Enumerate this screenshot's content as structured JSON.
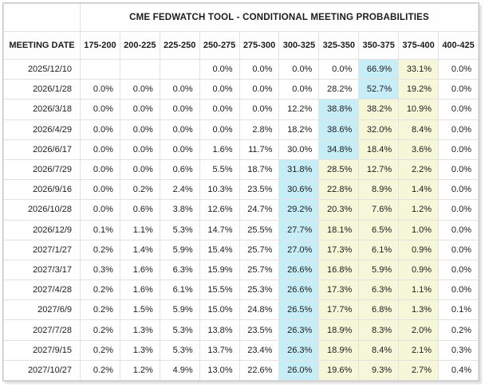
{
  "widget": {
    "title": "CME FEDWATCH TOOL - CONDITIONAL MEETING PROBABILITIES"
  },
  "table": {
    "date_column_header": "MEETING DATE",
    "rate_columns": [
      "175-200",
      "200-225",
      "225-250",
      "250-275",
      "275-300",
      "300-325",
      "325-350",
      "350-375",
      "375-400",
      "400-425"
    ],
    "rows": [
      {
        "date": "2025/12/10",
        "values": [
          "",
          "",
          "",
          "0.0%",
          "0.0%",
          "0.0%",
          "0.0%",
          "66.9%",
          "33.1%",
          "0.0%"
        ],
        "highlights": [
          "none",
          "none",
          "none",
          "none",
          "none",
          "none",
          "none",
          "blue",
          "yellow",
          "none"
        ]
      },
      {
        "date": "2026/1/28",
        "values": [
          "0.0%",
          "0.0%",
          "0.0%",
          "0.0%",
          "0.0%",
          "0.0%",
          "28.2%",
          "52.7%",
          "19.2%",
          "0.0%"
        ],
        "highlights": [
          "none",
          "none",
          "none",
          "none",
          "none",
          "none",
          "none",
          "blue",
          "yellow",
          "none"
        ]
      },
      {
        "date": "2026/3/18",
        "values": [
          "0.0%",
          "0.0%",
          "0.0%",
          "0.0%",
          "0.0%",
          "12.2%",
          "38.8%",
          "38.2%",
          "10.9%",
          "0.0%"
        ],
        "highlights": [
          "none",
          "none",
          "none",
          "none",
          "none",
          "none",
          "blue",
          "yellow",
          "yellow",
          "none"
        ]
      },
      {
        "date": "2026/4/29",
        "values": [
          "0.0%",
          "0.0%",
          "0.0%",
          "0.0%",
          "2.8%",
          "18.2%",
          "38.6%",
          "32.0%",
          "8.4%",
          "0.0%"
        ],
        "highlights": [
          "none",
          "none",
          "none",
          "none",
          "none",
          "none",
          "blue",
          "yellow",
          "yellow",
          "none"
        ]
      },
      {
        "date": "2026/6/17",
        "values": [
          "0.0%",
          "0.0%",
          "0.0%",
          "1.6%",
          "11.7%",
          "30.0%",
          "34.8%",
          "18.4%",
          "3.6%",
          "0.0%"
        ],
        "highlights": [
          "none",
          "none",
          "none",
          "none",
          "none",
          "none",
          "blue",
          "yellow",
          "yellow",
          "none"
        ]
      },
      {
        "date": "2026/7/29",
        "values": [
          "0.0%",
          "0.0%",
          "0.6%",
          "5.5%",
          "18.7%",
          "31.8%",
          "28.5%",
          "12.7%",
          "2.2%",
          "0.0%"
        ],
        "highlights": [
          "none",
          "none",
          "none",
          "none",
          "none",
          "blue",
          "yellow",
          "yellow",
          "yellow",
          "none"
        ]
      },
      {
        "date": "2026/9/16",
        "values": [
          "0.0%",
          "0.2%",
          "2.4%",
          "10.3%",
          "23.5%",
          "30.6%",
          "22.8%",
          "8.9%",
          "1.4%",
          "0.0%"
        ],
        "highlights": [
          "none",
          "none",
          "none",
          "none",
          "none",
          "blue",
          "yellow",
          "yellow",
          "yellow",
          "none"
        ]
      },
      {
        "date": "2026/10/28",
        "values": [
          "0.0%",
          "0.6%",
          "3.8%",
          "12.6%",
          "24.7%",
          "29.2%",
          "20.3%",
          "7.6%",
          "1.2%",
          "0.0%"
        ],
        "highlights": [
          "none",
          "none",
          "none",
          "none",
          "none",
          "blue",
          "yellow",
          "yellow",
          "yellow",
          "none"
        ]
      },
      {
        "date": "2026/12/9",
        "values": [
          "0.1%",
          "1.1%",
          "5.3%",
          "14.7%",
          "25.5%",
          "27.7%",
          "18.1%",
          "6.5%",
          "1.0%",
          "0.0%"
        ],
        "highlights": [
          "none",
          "none",
          "none",
          "none",
          "none",
          "blue",
          "yellow",
          "yellow",
          "yellow",
          "none"
        ]
      },
      {
        "date": "2027/1/27",
        "values": [
          "0.2%",
          "1.4%",
          "5.9%",
          "15.4%",
          "25.7%",
          "27.0%",
          "17.3%",
          "6.1%",
          "0.9%",
          "0.0%"
        ],
        "highlights": [
          "none",
          "none",
          "none",
          "none",
          "none",
          "blue",
          "yellow",
          "yellow",
          "yellow",
          "none"
        ]
      },
      {
        "date": "2027/3/17",
        "values": [
          "0.3%",
          "1.6%",
          "6.3%",
          "15.9%",
          "25.7%",
          "26.6%",
          "16.8%",
          "5.9%",
          "0.9%",
          "0.0%"
        ],
        "highlights": [
          "none",
          "none",
          "none",
          "none",
          "none",
          "blue",
          "yellow",
          "yellow",
          "yellow",
          "none"
        ]
      },
      {
        "date": "2027/4/28",
        "values": [
          "0.2%",
          "1.6%",
          "6.1%",
          "15.5%",
          "25.3%",
          "26.6%",
          "17.3%",
          "6.3%",
          "1.1%",
          "0.0%"
        ],
        "highlights": [
          "none",
          "none",
          "none",
          "none",
          "none",
          "blue",
          "yellow",
          "yellow",
          "yellow",
          "none"
        ]
      },
      {
        "date": "2027/6/9",
        "values": [
          "0.2%",
          "1.5%",
          "5.9%",
          "15.0%",
          "24.8%",
          "26.5%",
          "17.7%",
          "6.8%",
          "1.3%",
          "0.1%"
        ],
        "highlights": [
          "none",
          "none",
          "none",
          "none",
          "none",
          "blue",
          "yellow",
          "yellow",
          "yellow",
          "none"
        ]
      },
      {
        "date": "2027/7/28",
        "values": [
          "0.2%",
          "1.3%",
          "5.3%",
          "13.8%",
          "23.5%",
          "26.3%",
          "18.9%",
          "8.3%",
          "2.0%",
          "0.2%"
        ],
        "highlights": [
          "none",
          "none",
          "none",
          "none",
          "none",
          "blue",
          "yellow",
          "yellow",
          "yellow",
          "none"
        ]
      },
      {
        "date": "2027/9/15",
        "values": [
          "0.2%",
          "1.3%",
          "5.3%",
          "13.7%",
          "23.4%",
          "26.3%",
          "18.9%",
          "8.4%",
          "2.1%",
          "0.3%"
        ],
        "highlights": [
          "none",
          "none",
          "none",
          "none",
          "none",
          "blue",
          "yellow",
          "yellow",
          "yellow",
          "none"
        ]
      },
      {
        "date": "2027/10/27",
        "values": [
          "0.2%",
          "1.2%",
          "4.9%",
          "13.0%",
          "22.6%",
          "26.0%",
          "19.6%",
          "9.3%",
          "2.7%",
          "0.4%"
        ],
        "highlights": [
          "none",
          "none",
          "none",
          "none",
          "none",
          "blue",
          "yellow",
          "yellow",
          "yellow",
          "none"
        ]
      }
    ]
  },
  "colors": {
    "highlight_blue": "#c7edf7",
    "highlight_yellow": "#f6f6d9",
    "grid_border": "#e2e2e2",
    "outer_border": "#c6c6c6",
    "text": "#1c1c1c"
  }
}
